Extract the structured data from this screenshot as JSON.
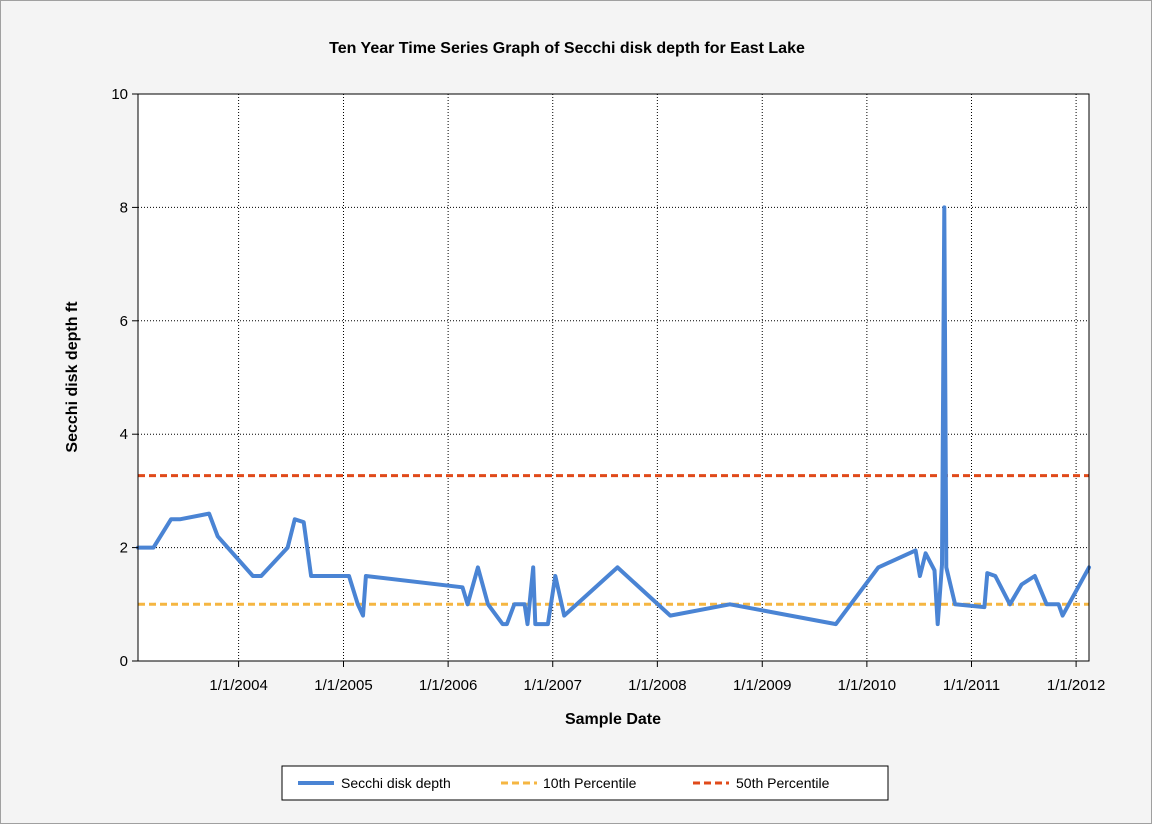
{
  "chart_data": {
    "type": "line",
    "title": "Ten Year Time Series Graph of Secchi disk depth for East Lake",
    "xlabel": "Sample Date",
    "ylabel": "Secchi disk depth ft",
    "xlim": [
      "2003-01-15",
      "2012-02-15"
    ],
    "ylim": [
      0,
      10
    ],
    "y_ticks": [
      0,
      2,
      4,
      6,
      8,
      10
    ],
    "x_ticks": [
      "2004-01-01",
      "2005-01-01",
      "2006-01-01",
      "2007-01-01",
      "2008-01-01",
      "2009-01-01",
      "2010-01-01",
      "2011-01-01",
      "2012-01-01"
    ],
    "x_tick_labels": [
      "1/1/2004",
      "1/1/2005",
      "1/1/2006",
      "1/1/2007",
      "1/1/2008",
      "1/1/2009",
      "1/1/2010",
      "1/1/2011",
      "1/1/2012"
    ],
    "grid": true,
    "legend_position": "bottom-center",
    "series": [
      {
        "name": "Secchi disk depth",
        "color": "#4a84d4",
        "style": "solid",
        "points": [
          [
            "2003-01-15",
            2.0
          ],
          [
            "2003-03-10",
            2.0
          ],
          [
            "2003-05-10",
            2.5
          ],
          [
            "2003-06-10",
            2.5
          ],
          [
            "2003-09-20",
            2.6
          ],
          [
            "2003-10-20",
            2.2
          ],
          [
            "2004-02-20",
            1.5
          ],
          [
            "2004-03-20",
            1.5
          ],
          [
            "2004-06-20",
            2.0
          ],
          [
            "2004-07-15",
            2.5
          ],
          [
            "2004-08-15",
            2.45
          ],
          [
            "2004-09-10",
            1.5
          ],
          [
            "2005-01-20",
            1.5
          ],
          [
            "2005-02-20",
            1.0
          ],
          [
            "2005-03-10",
            0.8
          ],
          [
            "2005-03-20",
            1.5
          ],
          [
            "2006-02-20",
            1.3
          ],
          [
            "2006-03-10",
            1.0
          ],
          [
            "2006-04-15",
            1.65
          ],
          [
            "2006-05-20",
            1.0
          ],
          [
            "2006-07-10",
            0.65
          ],
          [
            "2006-07-25",
            0.65
          ],
          [
            "2006-08-20",
            1.0
          ],
          [
            "2006-09-25",
            1.0
          ],
          [
            "2006-10-05",
            0.65
          ],
          [
            "2006-10-25",
            1.65
          ],
          [
            "2006-11-01",
            0.65
          ],
          [
            "2006-12-15",
            0.65
          ],
          [
            "2007-01-10",
            1.5
          ],
          [
            "2007-02-10",
            0.8
          ],
          [
            "2007-08-15",
            1.65
          ],
          [
            "2008-02-15",
            0.8
          ],
          [
            "2008-09-10",
            1.0
          ],
          [
            "2009-09-15",
            0.65
          ],
          [
            "2010-02-10",
            1.65
          ],
          [
            "2010-06-20",
            1.95
          ],
          [
            "2010-07-05",
            1.5
          ],
          [
            "2010-07-25",
            1.9
          ],
          [
            "2010-08-25",
            1.6
          ],
          [
            "2010-09-05",
            0.65
          ],
          [
            "2010-09-20",
            1.7
          ],
          [
            "2010-09-28",
            8.0
          ],
          [
            "2010-10-05",
            1.65
          ],
          [
            "2010-11-05",
            1.0
          ],
          [
            "2011-02-15",
            0.95
          ],
          [
            "2011-02-25",
            1.55
          ],
          [
            "2011-03-25",
            1.5
          ],
          [
            "2011-05-15",
            1.0
          ],
          [
            "2011-06-25",
            1.35
          ],
          [
            "2011-08-10",
            1.5
          ],
          [
            "2011-09-20",
            1.0
          ],
          [
            "2011-11-01",
            1.0
          ],
          [
            "2011-11-15",
            0.8
          ],
          [
            "2012-02-15",
            1.65
          ]
        ]
      },
      {
        "name": "10th Percentile",
        "color": "#f5b642",
        "style": "dashed",
        "value": 1.0
      },
      {
        "name": "50th Percentile",
        "color": "#e04a1a",
        "style": "dashed",
        "value": 3.27
      }
    ]
  }
}
